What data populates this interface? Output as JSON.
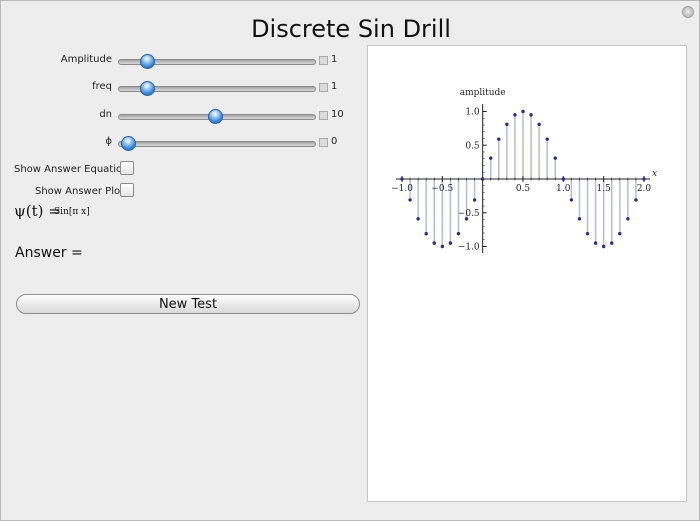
{
  "window": {
    "close_glyph": "×"
  },
  "title": "Discrete Sin Drill",
  "controls": [
    {
      "label": "Amplitude",
      "value": "1",
      "fraction": 0.145
    },
    {
      "label": "freq",
      "value": "1",
      "fraction": 0.145
    },
    {
      "label": "dn",
      "value": "10",
      "fraction": 0.49
    },
    {
      "label": "ϕ",
      "value": "0",
      "fraction": 0.045
    }
  ],
  "checkboxes": [
    {
      "label": "Show Answer Equation",
      "checked": false
    },
    {
      "label": "Show Answer Plot",
      "checked": false
    }
  ],
  "equation": {
    "lhs": "ψ(t) =",
    "rhs": "Sin[π x]"
  },
  "answer_label": "Answer =",
  "new_test_label": "New Test",
  "icons": {
    "slider_thumb": "blue-aqua-knob",
    "plus": "expand-plus-icon",
    "close": "close-icon"
  },
  "chart_data": {
    "type": "scatter",
    "style": "stem",
    "ylabel": "amplitude",
    "xlabel": "x",
    "xlim": [
      -1.0,
      2.0
    ],
    "ylim": [
      -1.0,
      1.0
    ],
    "x_ticks": [
      "−1.0",
      "−0.5",
      "0.5",
      "1.0",
      "1.5",
      "2.0"
    ],
    "y_ticks": [
      "1.0",
      "0.5",
      "−0.5",
      "−1.0"
    ],
    "x": [
      -1.0,
      -0.9,
      -0.8,
      -0.7,
      -0.6,
      -0.5,
      -0.4,
      -0.3,
      -0.2,
      -0.1,
      0.0,
      0.1,
      0.2,
      0.3,
      0.4,
      0.5,
      0.6,
      0.7,
      0.8,
      0.9,
      1.0,
      1.1,
      1.2,
      1.3,
      1.4,
      1.5,
      1.6,
      1.7,
      1.8,
      1.9,
      2.0
    ],
    "y": [
      0.0,
      -0.31,
      -0.59,
      -0.81,
      -0.95,
      -1.0,
      -0.95,
      -0.81,
      -0.59,
      -0.31,
      0.0,
      0.31,
      0.59,
      0.81,
      0.95,
      1.0,
      0.95,
      0.81,
      0.59,
      0.31,
      0.0,
      -0.31,
      -0.59,
      -0.81,
      -0.95,
      -1.0,
      -0.95,
      -0.81,
      -0.59,
      -0.31,
      0.0
    ],
    "stem_color": "#b8b8e0",
    "point_color": "#2a2a88"
  }
}
